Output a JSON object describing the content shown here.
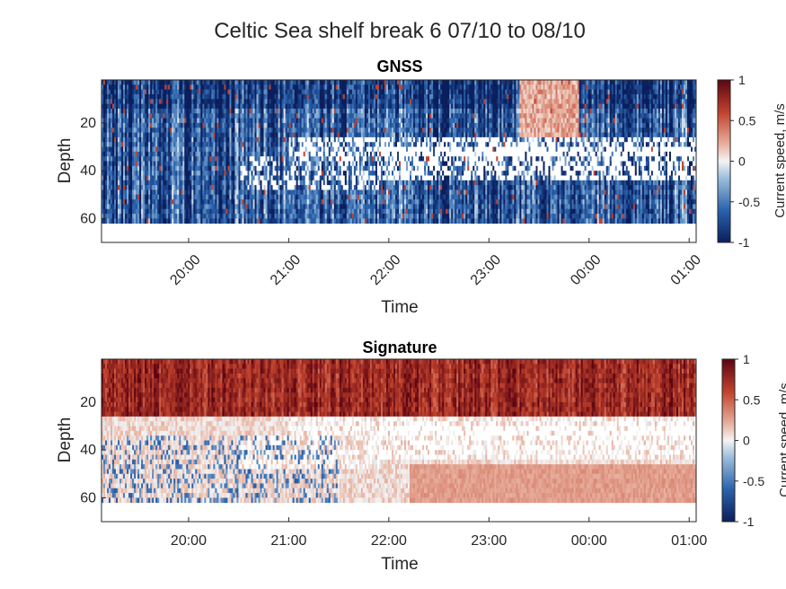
{
  "figure_title": "Celtic Sea shelf break 6 07/10 to 08/10",
  "chart_data": [
    {
      "type": "heatmap",
      "title": "GNSS",
      "xlabel": "Time",
      "ylabel": "Depth",
      "x_tick_labels": [
        "20:00",
        "21:00",
        "22:00",
        "23:00",
        "00:00",
        "01:00"
      ],
      "x_tick_rotation": 45,
      "y_tick_labels": [
        "20",
        "40",
        "60"
      ],
      "y_ticks": [
        20,
        40,
        60
      ],
      "ylim": [
        2,
        70
      ],
      "y_reversed": true,
      "colorbar": {
        "label": "Current speed, m/s",
        "ticks": [
          "1",
          "0.5",
          "0",
          "-0.5",
          "-1"
        ],
        "tick_values": [
          1,
          0.5,
          0,
          -0.5,
          -1
        ],
        "range": [
          -1,
          1
        ],
        "colormap": "blue-white-red diverging"
      },
      "pattern": "mostly negative (blue) speeds across depth; white data gaps near 27-42 m after 22:00; data down to ~61 m"
    },
    {
      "type": "heatmap",
      "title": "Signature",
      "xlabel": "Time",
      "ylabel": "Depth",
      "x_tick_labels": [
        "20:00",
        "21:00",
        "22:00",
        "23:00",
        "00:00",
        "01:00"
      ],
      "x_tick_rotation": 0,
      "y_tick_labels": [
        "20",
        "40",
        "60"
      ],
      "y_ticks": [
        20,
        40,
        60
      ],
      "ylim": [
        2,
        70
      ],
      "y_reversed": true,
      "colorbar": {
        "label": "Current speed, m/s",
        "ticks": [
          "1",
          "0.5",
          "0",
          "-0.5",
          "-1"
        ],
        "tick_values": [
          1,
          0.5,
          0,
          -0.5,
          -1
        ],
        "range": [
          -1,
          1
        ],
        "colormap": "blue-white-red diverging"
      },
      "pattern": "strong positive (red) speeds in upper ~25 m; near-zero pale values below with faint blue patches; white gaps near 27-42 m"
    }
  ],
  "colors": {
    "deep_blue": "#0b1e5c",
    "mid_blue": "#2f6fb4",
    "white": "#ffffff",
    "mid_red": "#d2694f",
    "deep_red": "#67000d",
    "axis": "#262626"
  }
}
